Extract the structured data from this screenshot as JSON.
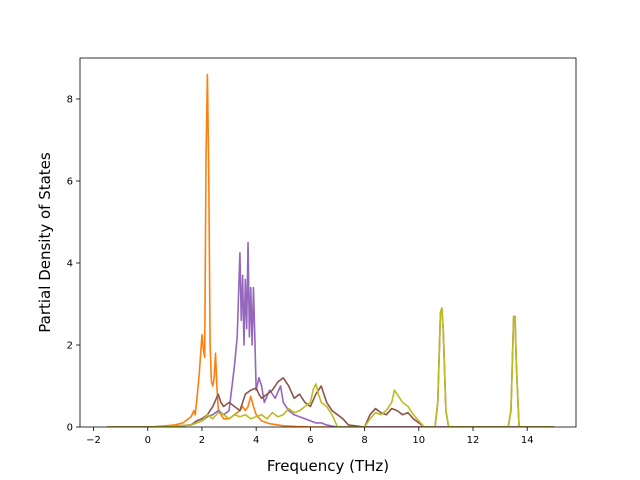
{
  "chart_data": {
    "type": "line",
    "title": "",
    "xlabel": "Frequency (THz)",
    "ylabel": "Partial Density of States",
    "xlim": [
      -2.5,
      15.8
    ],
    "ylim": [
      0,
      9.0
    ],
    "xticks": [
      -2,
      0,
      2,
      4,
      6,
      8,
      10,
      12,
      14
    ],
    "xtick_labels": [
      "−2",
      "0",
      "2",
      "4",
      "6",
      "8",
      "10",
      "12",
      "14"
    ],
    "yticks": [
      0,
      2,
      4,
      6,
      8
    ],
    "ytick_labels": [
      "0",
      "2",
      "4",
      "6",
      "8"
    ],
    "grid": false,
    "legend": "none",
    "series": [
      {
        "color": "#ff7f0e",
        "x": [
          -1.5,
          0.0,
          0.5,
          1.0,
          1.3,
          1.6,
          1.7,
          1.75,
          1.8,
          1.9,
          2.0,
          2.05,
          2.1,
          2.15,
          2.2,
          2.25,
          2.3,
          2.35,
          2.4,
          2.45,
          2.5,
          2.55,
          2.6,
          2.7,
          2.8,
          3.0,
          3.2,
          3.4,
          3.5,
          3.6,
          3.7,
          3.8,
          3.9,
          4.0,
          4.2,
          4.5,
          4.8,
          5.0,
          5.5,
          6.0,
          7.0,
          8.0,
          10.0,
          12.0,
          15.0
        ],
        "y": [
          0,
          0,
          0.02,
          0.05,
          0.1,
          0.25,
          0.4,
          0.3,
          0.6,
          1.3,
          2.25,
          1.9,
          1.7,
          6.6,
          8.6,
          6.2,
          2.0,
          1.1,
          1.0,
          1.2,
          1.8,
          1.0,
          0.45,
          0.3,
          0.2,
          0.2,
          0.3,
          0.4,
          0.5,
          0.4,
          0.5,
          0.75,
          0.5,
          0.3,
          0.15,
          0.08,
          0.05,
          0.03,
          0.01,
          0,
          0,
          0,
          0,
          0,
          0
        ]
      },
      {
        "color": "#9467bd",
        "x": [
          -1.5,
          0.0,
          1.0,
          1.6,
          1.8,
          2.0,
          2.2,
          2.4,
          2.6,
          2.8,
          3.0,
          3.2,
          3.3,
          3.4,
          3.45,
          3.5,
          3.55,
          3.6,
          3.65,
          3.7,
          3.75,
          3.8,
          3.85,
          3.9,
          3.95,
          4.0,
          4.1,
          4.2,
          4.3,
          4.5,
          4.7,
          4.9,
          5.0,
          5.2,
          5.4,
          5.6,
          5.8,
          6.0,
          6.2,
          6.4,
          6.6,
          6.8,
          7.0,
          7.5,
          8.0,
          15.0
        ],
        "y": [
          0,
          0,
          0.02,
          0.05,
          0.1,
          0.15,
          0.25,
          0.3,
          0.4,
          0.3,
          0.4,
          1.5,
          2.2,
          4.25,
          2.6,
          3.7,
          2.0,
          3.6,
          2.4,
          4.5,
          2.2,
          3.4,
          2.0,
          3.4,
          2.2,
          0.9,
          1.2,
          1.0,
          0.6,
          0.9,
          0.7,
          1.0,
          0.6,
          0.4,
          0.3,
          0.25,
          0.2,
          0.15,
          0.1,
          0.1,
          0.05,
          0.02,
          0,
          0,
          0,
          0
        ]
      },
      {
        "color": "#8c564b",
        "x": [
          -1.5,
          0.0,
          1.0,
          1.6,
          1.8,
          2.0,
          2.2,
          2.4,
          2.6,
          2.7,
          2.8,
          3.0,
          3.2,
          3.4,
          3.6,
          3.8,
          4.0,
          4.1,
          4.2,
          4.4,
          4.6,
          4.8,
          5.0,
          5.2,
          5.4,
          5.6,
          5.8,
          6.0,
          6.2,
          6.4,
          6.6,
          6.8,
          7.0,
          7.2,
          7.4,
          8.0,
          8.2,
          8.4,
          8.6,
          8.8,
          9.0,
          9.2,
          9.4,
          9.6,
          9.8,
          10.0,
          10.2,
          10.6,
          10.7,
          10.8,
          10.85,
          10.9,
          11.0,
          11.1,
          13.3,
          13.4,
          13.5,
          13.55,
          13.6,
          13.7,
          15.0
        ],
        "y": [
          0,
          0,
          0.02,
          0.05,
          0.15,
          0.2,
          0.3,
          0.5,
          0.8,
          0.6,
          0.5,
          0.6,
          0.5,
          0.4,
          0.8,
          0.9,
          0.95,
          0.8,
          0.7,
          0.8,
          0.9,
          1.1,
          1.2,
          1.0,
          0.7,
          0.8,
          0.6,
          0.5,
          0.8,
          1.0,
          0.6,
          0.4,
          0.3,
          0.2,
          0.05,
          0.0,
          0.3,
          0.45,
          0.35,
          0.3,
          0.45,
          0.4,
          0.3,
          0.35,
          0.2,
          0.1,
          0.0,
          0.0,
          0.6,
          2.8,
          2.9,
          2.4,
          0.4,
          0.0,
          0.0,
          0.4,
          2.7,
          2.7,
          1.5,
          0.0,
          0.0
        ]
      },
      {
        "color": "#bcbd22",
        "x": [
          -1.5,
          0.0,
          1.0,
          1.6,
          1.8,
          2.0,
          2.2,
          2.4,
          2.6,
          2.8,
          3.0,
          3.2,
          3.4,
          3.6,
          3.8,
          4.0,
          4.2,
          4.4,
          4.6,
          4.8,
          5.0,
          5.2,
          5.4,
          5.6,
          5.8,
          6.0,
          6.1,
          6.2,
          6.3,
          6.4,
          6.6,
          6.8,
          7.0,
          8.0,
          8.2,
          8.4,
          8.6,
          8.8,
          9.0,
          9.1,
          9.2,
          9.4,
          9.6,
          9.8,
          10.0,
          10.2,
          10.6,
          10.7,
          10.8,
          10.85,
          10.9,
          11.0,
          11.1,
          13.3,
          13.4,
          13.5,
          13.55,
          13.6,
          13.7,
          15.0
        ],
        "y": [
          0,
          0,
          0.02,
          0.05,
          0.1,
          0.15,
          0.3,
          0.2,
          0.35,
          0.3,
          0.2,
          0.3,
          0.25,
          0.3,
          0.2,
          0.25,
          0.3,
          0.2,
          0.35,
          0.25,
          0.3,
          0.45,
          0.35,
          0.4,
          0.5,
          0.6,
          0.9,
          1.05,
          0.8,
          0.6,
          0.5,
          0.3,
          0.0,
          0.0,
          0.2,
          0.35,
          0.3,
          0.4,
          0.6,
          0.9,
          0.8,
          0.6,
          0.5,
          0.3,
          0.15,
          0.0,
          0.0,
          0.6,
          2.8,
          2.9,
          2.4,
          0.4,
          0.0,
          0.0,
          0.4,
          2.7,
          2.7,
          1.5,
          0.0,
          0.0
        ]
      }
    ]
  }
}
